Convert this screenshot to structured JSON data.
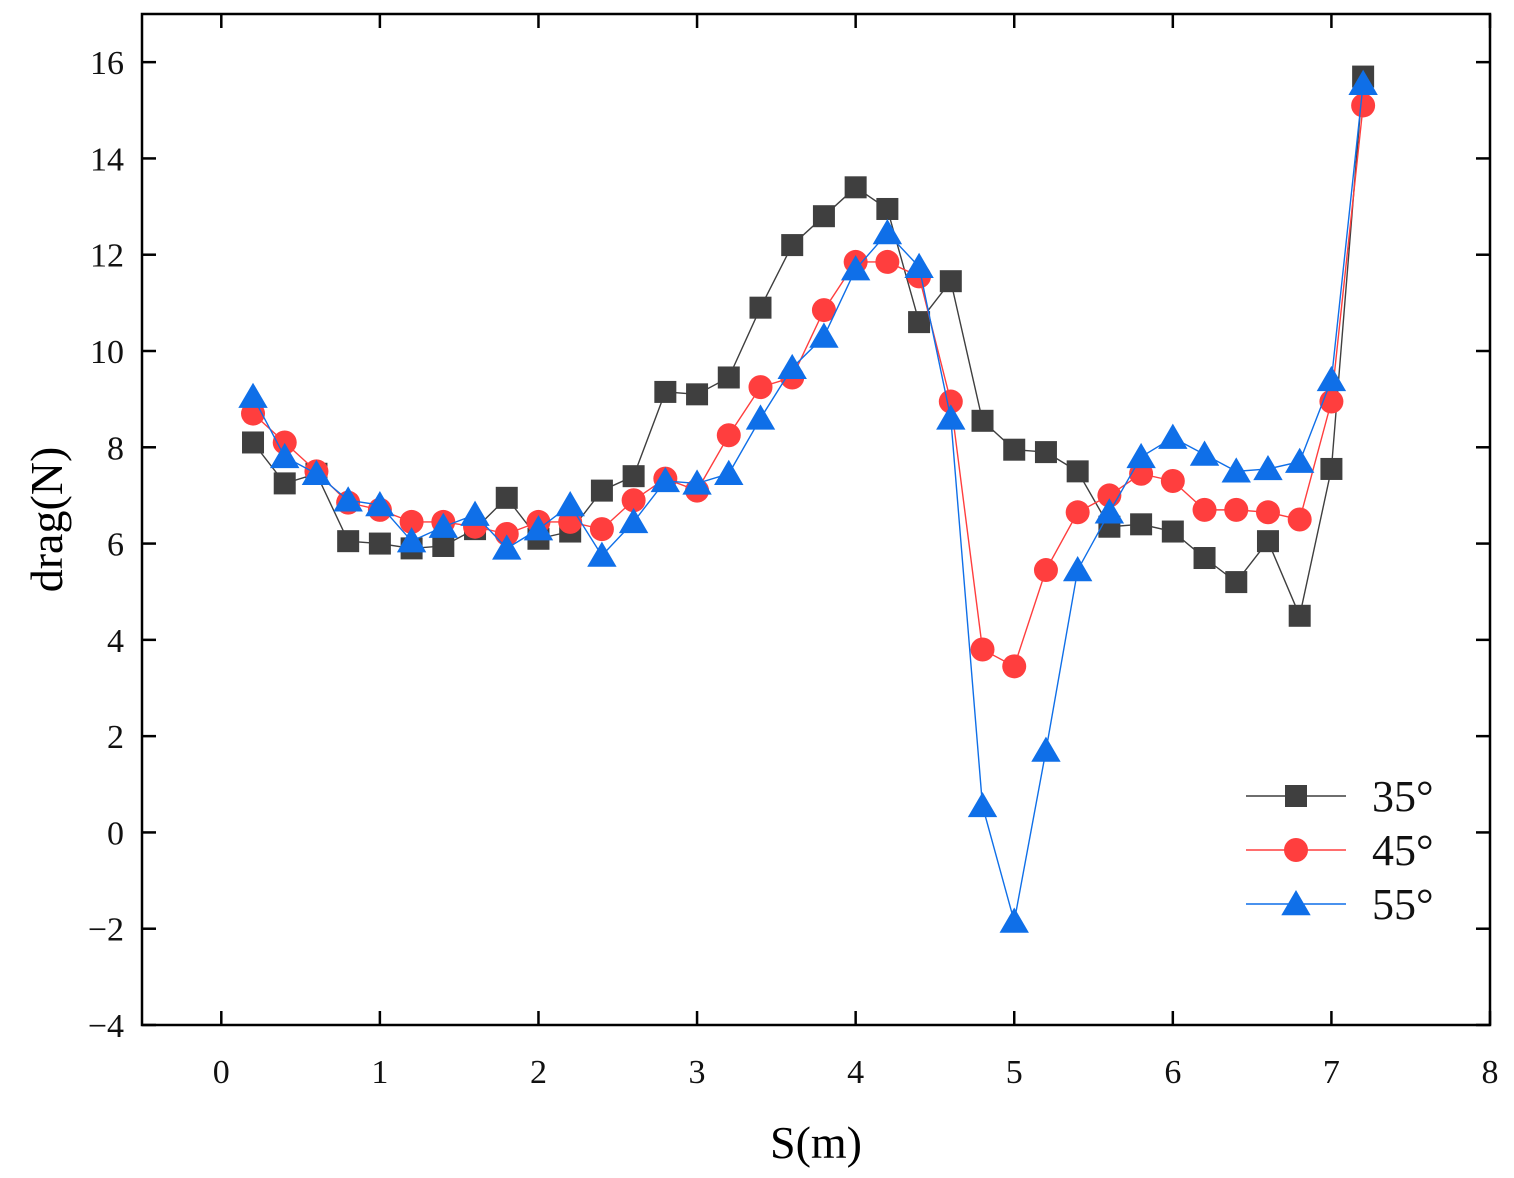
{
  "chart_data": {
    "type": "line",
    "title": "",
    "xlabel": "S(m)",
    "ylabel": "drag(N)",
    "xlim": [
      -0.5,
      8
    ],
    "ylim": [
      -4,
      17
    ],
    "xticks": [
      "0",
      "1",
      "2",
      "3",
      "4",
      "5",
      "6",
      "7",
      "8"
    ],
    "yticks": [
      "−4",
      "−2",
      "0",
      "2",
      "4",
      "6",
      "8",
      "10",
      "12",
      "14",
      "16"
    ],
    "legend_position": "bottom-right",
    "x": [
      0.2,
      0.4,
      0.6,
      0.8,
      1.0,
      1.2,
      1.4,
      1.6,
      1.8,
      2.0,
      2.2,
      2.4,
      2.6,
      2.8,
      3.0,
      3.2,
      3.4,
      3.6,
      3.8,
      4.0,
      4.2,
      4.4,
      4.6,
      4.8,
      5.0,
      5.2,
      5.4,
      5.6,
      5.8,
      6.0,
      6.2,
      6.4,
      6.6,
      6.8,
      7.0,
      7.2
    ],
    "series": [
      {
        "name": "35°",
        "color": "#3f3f3f",
        "marker": "square",
        "values": [
          8.1,
          7.25,
          7.45,
          6.05,
          6.0,
          5.9,
          5.95,
          6.3,
          6.95,
          6.1,
          6.25,
          7.1,
          7.4,
          9.15,
          9.1,
          9.45,
          10.9,
          12.2,
          12.8,
          13.4,
          12.95,
          10.6,
          11.45,
          8.55,
          7.95,
          7.9,
          7.5,
          6.35,
          6.4,
          6.25,
          5.7,
          5.2,
          6.05,
          4.5,
          7.55,
          15.7
        ]
      },
      {
        "name": "45°",
        "color": "#ff3e3e",
        "marker": "circle",
        "values": [
          8.7,
          8.1,
          7.5,
          6.85,
          6.7,
          6.45,
          6.45,
          6.35,
          6.2,
          6.45,
          6.45,
          6.3,
          6.9,
          7.35,
          7.1,
          8.25,
          9.25,
          9.45,
          10.85,
          11.85,
          11.85,
          11.55,
          8.95,
          3.8,
          3.45,
          5.45,
          6.65,
          7.0,
          7.45,
          7.3,
          6.7,
          6.7,
          6.65,
          6.5,
          8.95,
          15.1
        ]
      },
      {
        "name": "55°",
        "color": "#0f6fe8",
        "marker": "triangle",
        "values": [
          9.05,
          7.8,
          7.45,
          6.9,
          6.8,
          6.05,
          6.35,
          6.6,
          5.9,
          6.3,
          6.8,
          5.75,
          6.45,
          7.3,
          7.25,
          7.45,
          8.6,
          9.65,
          10.3,
          11.7,
          12.45,
          11.75,
          8.6,
          0.55,
          -1.85,
          1.7,
          5.45,
          6.65,
          7.8,
          8.2,
          7.85,
          7.5,
          7.55,
          7.7,
          9.4,
          15.55
        ]
      }
    ]
  }
}
